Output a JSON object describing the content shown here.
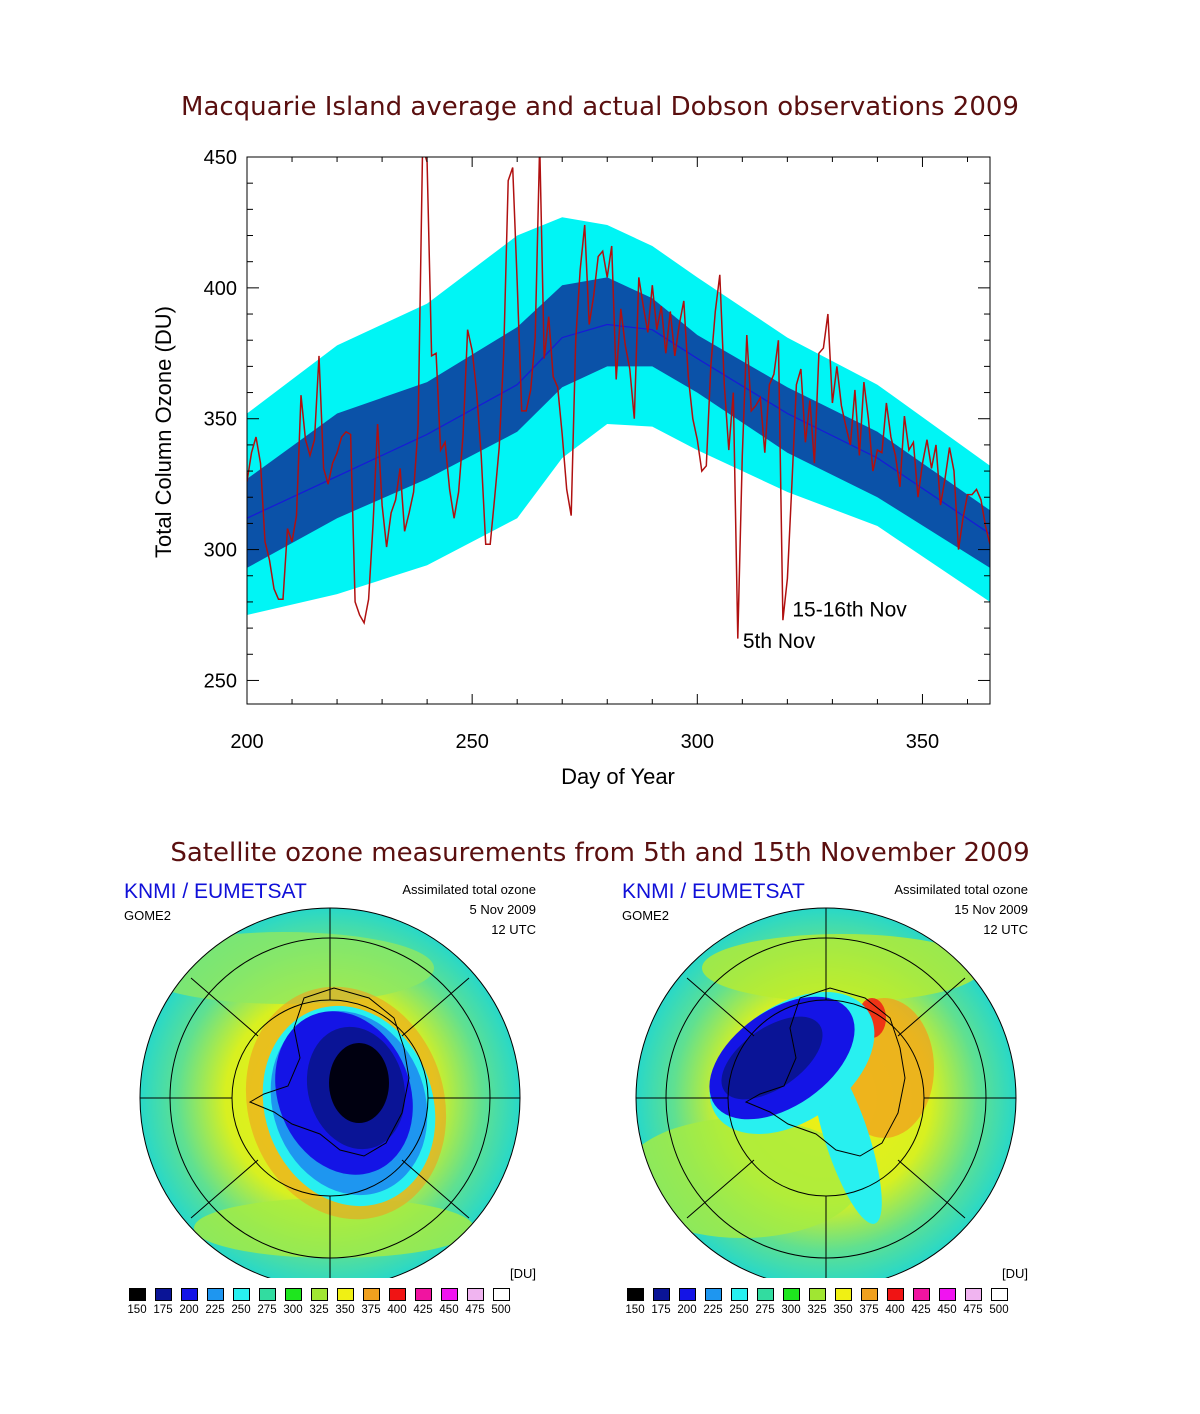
{
  "page": {
    "title_top": "Macquarie Island average and actual Dobson observations 2009",
    "title_bottom": "Satellite ozone measurements from 5th and 15th November 2009"
  },
  "chart_data": {
    "type": "line",
    "title": "Macquarie Island average and actual Dobson observations 2009",
    "xlabel": "Day of Year",
    "ylabel": "Total Column Ozone (DU)",
    "xlim": [
      200,
      365
    ],
    "ylim": [
      241,
      450
    ],
    "xticks": [
      200,
      250,
      300,
      350
    ],
    "yticks": [
      250,
      300,
      350,
      400,
      450
    ],
    "grid": false,
    "band_days": [
      200,
      220,
      240,
      260,
      270,
      280,
      290,
      300,
      320,
      340,
      365
    ],
    "series": [
      {
        "role": "outer-band",
        "color": "#00f5f5",
        "upper": [
          352,
          378,
          394,
          420,
          427,
          424,
          416,
          404,
          381,
          363,
          332
        ],
        "lower": [
          275,
          283,
          294,
          312,
          335,
          348,
          347,
          338,
          322,
          309,
          280
        ]
      },
      {
        "role": "inner-band",
        "color": "#0b52a8",
        "upper": [
          327,
          352,
          364,
          385,
          401,
          404,
          396,
          382,
          362,
          345,
          315
        ],
        "lower": [
          293,
          312,
          327,
          345,
          362,
          370,
          370,
          360,
          337,
          320,
          293
        ]
      },
      {
        "role": "average",
        "color": "#1818d8",
        "values": [
          312,
          328,
          344,
          363,
          381,
          386,
          384,
          373,
          352,
          335,
          306
        ]
      },
      {
        "role": "observations",
        "color": "#b01010",
        "x": [
          200,
          201,
          202,
          203,
          204,
          205,
          206,
          207,
          208,
          209,
          210,
          211,
          212,
          213,
          214,
          215,
          216,
          217,
          218,
          219,
          220,
          221,
          222,
          223,
          224,
          225,
          226,
          227,
          228,
          229,
          230,
          231,
          232,
          233,
          234,
          235,
          236,
          237,
          238,
          239,
          240,
          241,
          242,
          243,
          244,
          245,
          246,
          247,
          248,
          249,
          250,
          251,
          252,
          253,
          254,
          255,
          256,
          257,
          258,
          259,
          260,
          261,
          262,
          263,
          264,
          265,
          266,
          267,
          268,
          269,
          270,
          271,
          272,
          273,
          274,
          275,
          276,
          277,
          278,
          279,
          280,
          281,
          282,
          283,
          284,
          285,
          286,
          287,
          288,
          289,
          290,
          291,
          292,
          293,
          294,
          295,
          296,
          297,
          298,
          299,
          300,
          301,
          302,
          303,
          304,
          305,
          306,
          307,
          308,
          309,
          310,
          311,
          312,
          313,
          314,
          315,
          316,
          317,
          318,
          319,
          320,
          321,
          322,
          323,
          324,
          325,
          326,
          327,
          328,
          329,
          330,
          331,
          332,
          333,
          334,
          335,
          336,
          337,
          338,
          339,
          340,
          341,
          342,
          343,
          344,
          345,
          346,
          347,
          348,
          349,
          350,
          351,
          352,
          353,
          354,
          355,
          356,
          357,
          358,
          359,
          360,
          361,
          362,
          363,
          364,
          365
        ],
        "values": [
          326,
          337,
          343,
          333,
          303,
          296,
          285,
          281,
          281,
          308,
          303,
          313,
          359,
          342,
          336,
          342,
          374,
          331,
          325,
          333,
          337,
          343,
          345,
          344,
          280,
          275,
          272,
          281,
          310,
          348,
          317,
          301,
          314,
          319,
          331,
          307,
          314,
          322,
          347,
          454,
          448,
          374,
          375,
          338,
          341,
          323,
          312,
          322,
          344,
          384,
          376,
          360,
          336,
          302,
          302,
          320,
          339,
          375,
          441,
          446,
          402,
          353,
          353,
          361,
          381,
          455,
          373,
          389,
          366,
          362,
          344,
          323,
          313,
          380,
          407,
          424,
          386,
          397,
          412,
          414,
          404,
          416,
          365,
          392,
          378,
          369,
          350,
          404,
          393,
          383,
          401,
          384,
          393,
          375,
          391,
          374,
          386,
          395,
          366,
          350,
          342,
          330,
          332,
          370,
          391,
          405,
          363,
          338,
          360,
          266,
          336,
          382,
          353,
          355,
          358,
          337,
          363,
          367,
          380,
          273,
          289,
          325,
          363,
          369,
          341,
          357,
          333,
          375,
          377,
          390,
          356,
          370,
          355,
          347,
          340,
          361,
          336,
          364,
          350,
          330,
          338,
          337,
          356,
          343,
          336,
          324,
          351,
          338,
          341,
          320,
          333,
          342,
          331,
          340,
          317,
          327,
          339,
          330,
          300,
          312,
          321,
          321,
          323,
          319,
          309,
          302
        ]
      }
    ],
    "annotations": [
      {
        "text": "15-16th Nov",
        "x": 320,
        "y": 276
      },
      {
        "text": "5th Nov",
        "x": 309,
        "y": 264
      }
    ]
  },
  "maps": [
    {
      "org": "KNMI / EUMETSAT",
      "instrument": "GOME2",
      "product": "Assimilated total ozone",
      "date": "5 Nov 2009",
      "time": "12 UTC",
      "unit": "[DU]"
    },
    {
      "org": "KNMI / EUMETSAT",
      "instrument": "GOME2",
      "product": "Assimilated total ozone",
      "date": "15 Nov 2009",
      "time": "12 UTC",
      "unit": "[DU]"
    }
  ],
  "colorscale": {
    "labels": [
      "150",
      "175",
      "200",
      "225",
      "250",
      "275",
      "300",
      "325",
      "350",
      "375",
      "400",
      "425",
      "450",
      "475",
      "500"
    ],
    "colors": [
      "#000000",
      "#0a1496",
      "#1414e6",
      "#1e96f0",
      "#28f0f0",
      "#32dca0",
      "#1ee61e",
      "#a0e632",
      "#f0f014",
      "#f0a01e",
      "#f01414",
      "#f014a0",
      "#f014f0",
      "#f0b4f0",
      "#ffffff"
    ]
  }
}
